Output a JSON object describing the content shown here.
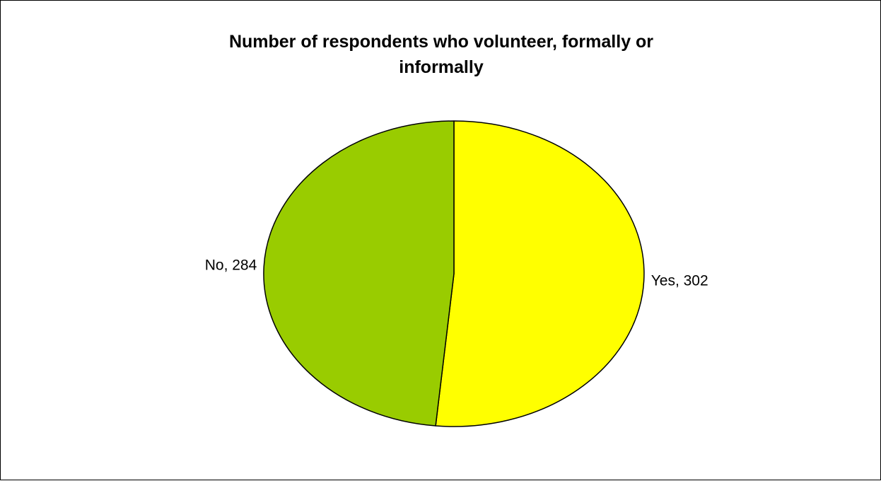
{
  "chart_data": {
    "type": "pie",
    "title_lines": [
      "Number of respondents who volunteer, formally or",
      "informally"
    ],
    "slices": [
      {
        "label": "Yes",
        "value": 302,
        "color": "#ffff00",
        "data_label": "Yes, 302"
      },
      {
        "label": "No",
        "value": 284,
        "color": "#99cc00",
        "data_label": "No, 284"
      }
    ],
    "start_angle": "12 o'clock",
    "direction": "clockwise",
    "legend": "none"
  }
}
